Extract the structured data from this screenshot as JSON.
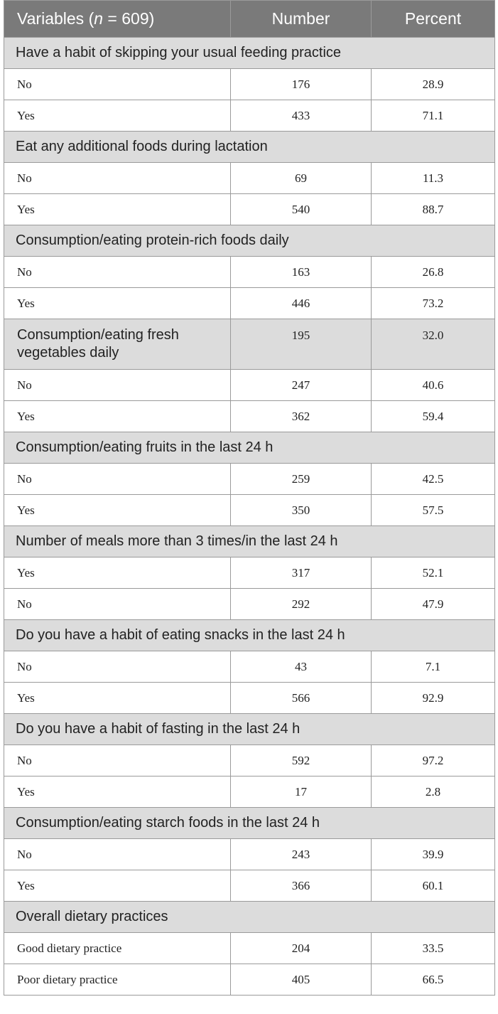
{
  "header": {
    "variables_prefix": "Variables (",
    "n_symbol": "n",
    "variables_suffix": " = 609)",
    "number": "Number",
    "percent": "Percent"
  },
  "sections": [
    {
      "title": "Have a habit of skipping your usual feeding practice",
      "rows": [
        {
          "label": "No",
          "number": "176",
          "percent": "28.9"
        },
        {
          "label": "Yes",
          "number": "433",
          "percent": "71.1"
        }
      ]
    },
    {
      "title": "Eat any additional foods during lactation",
      "rows": [
        {
          "label": "No",
          "number": "69",
          "percent": "11.3"
        },
        {
          "label": "Yes",
          "number": "540",
          "percent": "88.7"
        }
      ]
    },
    {
      "title": "Consumption/eating protein-rich foods daily",
      "rows": [
        {
          "label": "No",
          "number": "163",
          "percent": "26.8"
        },
        {
          "label": "Yes",
          "number": "446",
          "percent": "73.2"
        }
      ]
    },
    {
      "title": "Consumption/eating fresh vegetables daily",
      "title_number": "195",
      "title_percent": "32.0",
      "rows": [
        {
          "label": "No",
          "number": "247",
          "percent": "40.6"
        },
        {
          "label": "Yes",
          "number": "362",
          "percent": "59.4"
        }
      ]
    },
    {
      "title": "Consumption/eating fruits in the last 24 h",
      "rows": [
        {
          "label": "No",
          "number": "259",
          "percent": "42.5"
        },
        {
          "label": "Yes",
          "number": "350",
          "percent": "57.5"
        }
      ]
    },
    {
      "title": "Number of meals more than 3 times/in the last 24 h",
      "rows": [
        {
          "label": "Yes",
          "number": "317",
          "percent": "52.1"
        },
        {
          "label": "No",
          "number": "292",
          "percent": "47.9"
        }
      ]
    },
    {
      "title": "Do you have a habit of eating snacks in the last 24 h",
      "rows": [
        {
          "label": "No",
          "number": "43",
          "percent": "7.1"
        },
        {
          "label": "Yes",
          "number": "566",
          "percent": "92.9"
        }
      ]
    },
    {
      "title": "Do you have a habit of fasting in the last 24 h",
      "rows": [
        {
          "label": "No",
          "number": "592",
          "percent": "97.2"
        },
        {
          "label": "Yes",
          "number": "17",
          "percent": "2.8"
        }
      ]
    },
    {
      "title": "Consumption/eating starch foods in the last 24 h",
      "rows": [
        {
          "label": "No",
          "number": "243",
          "percent": "39.9"
        },
        {
          "label": "Yes",
          "number": "366",
          "percent": "60.1"
        }
      ]
    },
    {
      "title": "Overall dietary practices",
      "rows": [
        {
          "label": "Good dietary practice",
          "number": "204",
          "percent": "33.5"
        },
        {
          "label": "Poor dietary practice",
          "number": "405",
          "percent": "66.5"
        }
      ]
    }
  ]
}
